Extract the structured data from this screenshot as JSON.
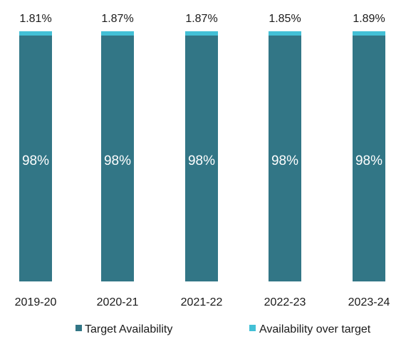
{
  "colors": {
    "target": "#327686",
    "over_target": "#43c0d6",
    "text": "#1a1a1a",
    "inner_text": "#ffffff"
  },
  "chart_data": {
    "type": "bar",
    "stacked": true,
    "title": "",
    "xlabel": "",
    "ylabel": "",
    "ylim": [
      0,
      100
    ],
    "grid": false,
    "legend_position": "bottom",
    "categories": [
      "2019-20",
      "2020-21",
      "2021-22",
      "2022-23",
      "2023-24"
    ],
    "series": [
      {
        "name": "Target Availability",
        "values": [
          98,
          98,
          98,
          98,
          98
        ],
        "labels": [
          "98%",
          "98%",
          "98%",
          "98%",
          "98%"
        ]
      },
      {
        "name": "Availability over target",
        "values": [
          1.81,
          1.87,
          1.87,
          1.85,
          1.89
        ],
        "labels": [
          "1.81%",
          "1.87%",
          "1.87%",
          "1.85%",
          "1.89%"
        ]
      }
    ]
  }
}
